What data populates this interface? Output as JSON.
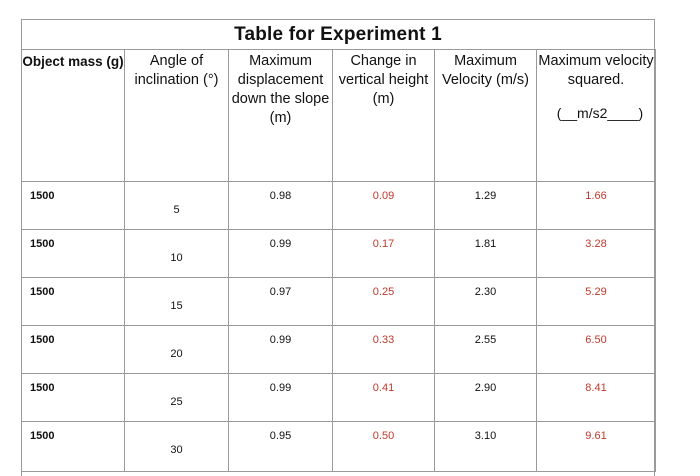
{
  "title": "Table for Experiment 1",
  "headers": {
    "mass": "Object mass (g)",
    "angle": "Angle of inclination (°)",
    "displacement": "Maximum displacement down the slope (m)",
    "height": "Change in vertical height (m)",
    "velocity": "Maximum Velocity (m/s)",
    "velocity_sq": "Maximum velocity squared.",
    "velocity_sq_units": "(__m/s2____)"
  },
  "colors": {
    "border": "#9a9a9a",
    "text": "#111111",
    "answer_red": "#c0392b"
  },
  "rows": [
    {
      "mass": "1500",
      "angle": "5",
      "displacement": "0.98",
      "height": "0.09",
      "velocity": "1.29",
      "velocity_sq": "1.66"
    },
    {
      "mass": "1500",
      "angle": "10",
      "displacement": "0.99",
      "height": "0.17",
      "velocity": "1.81",
      "velocity_sq": "3.28"
    },
    {
      "mass": "1500",
      "angle": "15",
      "displacement": "0.97",
      "height": "0.25",
      "velocity": "2.30",
      "velocity_sq": "5.29"
    },
    {
      "mass": "1500",
      "angle": "20",
      "displacement": "0.99",
      "height": "0.33",
      "velocity": "2.55",
      "velocity_sq": "6.50"
    },
    {
      "mass": "1500",
      "angle": "25",
      "displacement": "0.99",
      "height": "0.41",
      "velocity": "2.90",
      "velocity_sq": "8.41"
    },
    {
      "mass": "1500",
      "angle": "30",
      "displacement": "0.95",
      "height": "0.50",
      "velocity": "3.10",
      "velocity_sq": "9.61"
    }
  ]
}
